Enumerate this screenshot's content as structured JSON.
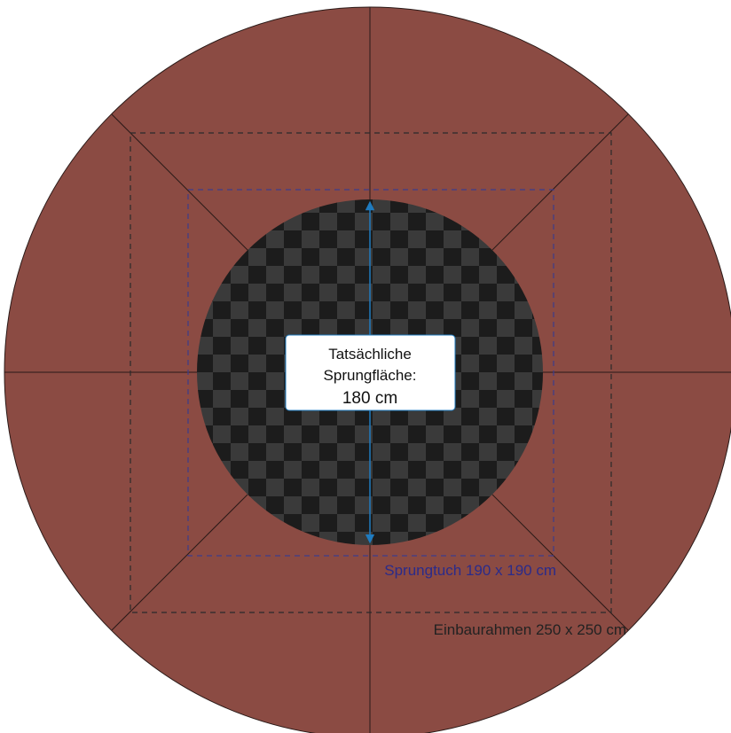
{
  "diagram": {
    "center_label": {
      "line1": "Tatsächliche",
      "line2": "Sprungfläche:",
      "line3": "180 cm"
    },
    "inner_frame_label": "Sprungtuch 190 x 190 cm",
    "outer_frame_label": "Einbaurahmen 250 x 250 cm"
  },
  "colors": {
    "padding": "#8b4b43",
    "padding_stroke": "#2a1a18",
    "checker_dark": "#1c1c1c",
    "checker_light": "#3a3a3a",
    "outer_frame_dash": "#2b2b2b",
    "inner_frame_dash": "#3c3c8c",
    "arrow": "#1f7bbf",
    "inner_label": "#2b2b8a",
    "outer_label": "#222222"
  }
}
